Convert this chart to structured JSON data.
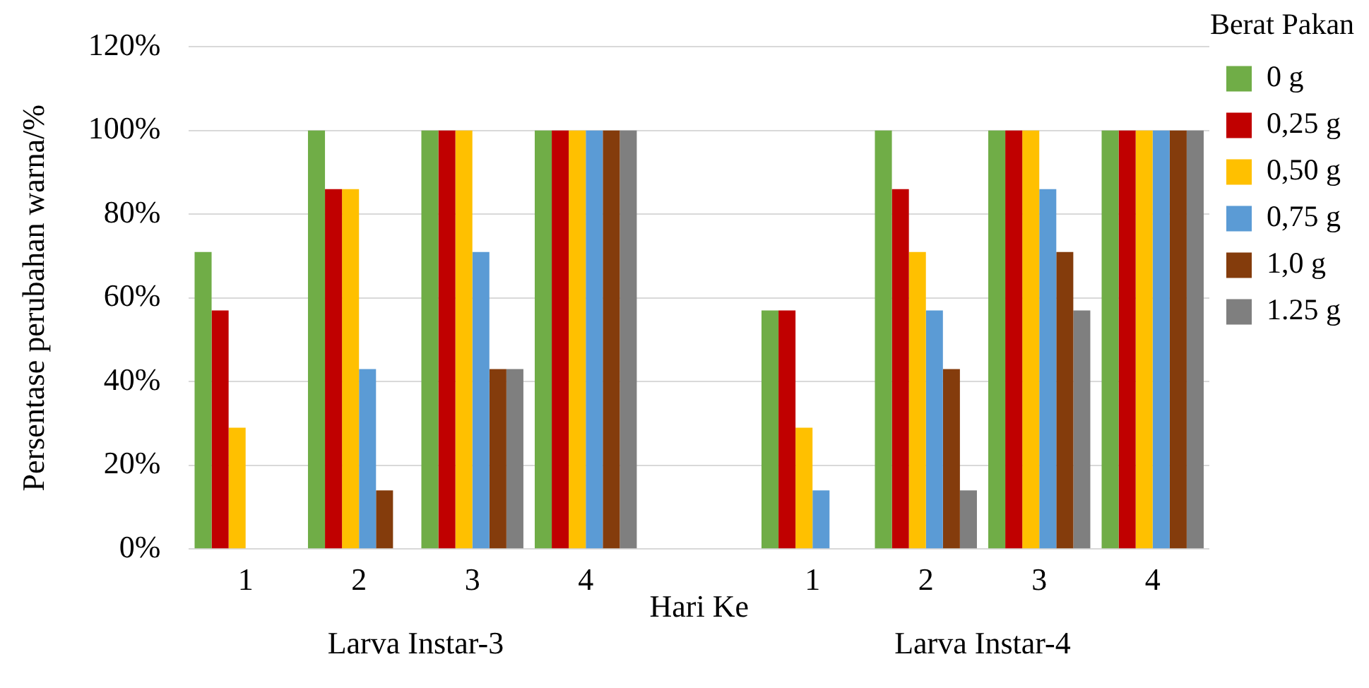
{
  "chart_data": {
    "type": "bar",
    "categories": [
      "1",
      "2",
      "3",
      "4",
      null,
      "1",
      "2",
      "3",
      "4"
    ],
    "series": [
      {
        "name": "0 g",
        "color": "#70ad47",
        "values": [
          71,
          100,
          100,
          100,
          null,
          57,
          100,
          100,
          100
        ]
      },
      {
        "name": "0,25 g",
        "color": "#c00000",
        "values": [
          57,
          86,
          100,
          100,
          null,
          57,
          86,
          100,
          100
        ]
      },
      {
        "name": "0,50 g",
        "color": "#ffc000",
        "values": [
          29,
          86,
          100,
          100,
          null,
          29,
          71,
          100,
          100
        ]
      },
      {
        "name": "0,75 g",
        "color": "#5b9bd5",
        "values": [
          0,
          43,
          71,
          100,
          null,
          14,
          57,
          86,
          100
        ]
      },
      {
        "name": "1,0 g",
        "color": "#843c0c",
        "values": [
          0,
          14,
          43,
          100,
          null,
          0,
          43,
          71,
          100
        ]
      },
      {
        "name": "1.25 g",
        "color": "#7f7f7f",
        "values": [
          0,
          0,
          43,
          100,
          null,
          0,
          14,
          57,
          100
        ]
      }
    ],
    "xlabel": "Hari Ke",
    "ylabel": "Persentase perubahan warna/%",
    "legend_title": "Berat Pakan",
    "annotations": [
      "Larva Instar-3",
      "Larva Instar-4"
    ],
    "ylim": [
      0,
      120
    ],
    "yticks": [
      {
        "value": 0,
        "label": "0%"
      },
      {
        "value": 20,
        "label": "20%"
      },
      {
        "value": 40,
        "label": "40%"
      },
      {
        "value": 60,
        "label": "60%"
      },
      {
        "value": 80,
        "label": "80%"
      },
      {
        "value": 100,
        "label": "100%"
      },
      {
        "value": 120,
        "label": "120%"
      }
    ],
    "grid": "y",
    "legend": "right"
  }
}
